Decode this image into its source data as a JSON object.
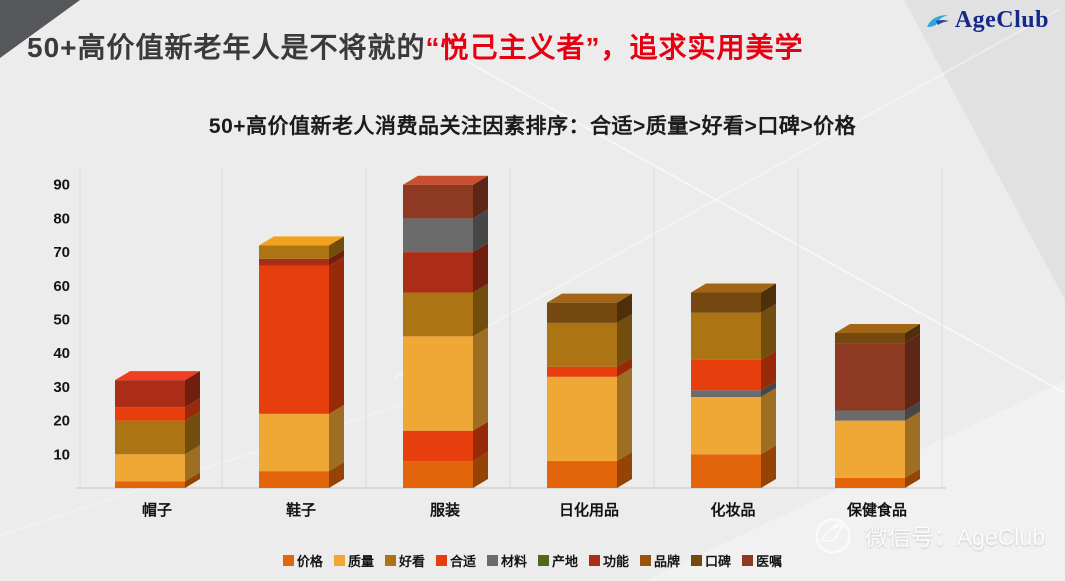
{
  "logo": {
    "text": "AgeClub"
  },
  "header": {
    "title_part_dark": "50+高价值新老年人是不将就的",
    "title_part_red": "“悦己主义者”，追求实用美学",
    "subtitle": "50+高价值新老人消费品关注因素排序：合适>质量>好看>口碑>价格"
  },
  "watermark": {
    "text": "微信号：AgeClub"
  },
  "colors": {
    "background": "#ECECEC",
    "accent_red": "#E60012",
    "title_dark": "#3A3A3C",
    "logo_blue": "#15298A"
  },
  "chart_data": {
    "type": "bar",
    "stacked": true,
    "title": "50+高价值新老人消费品关注因素排序：合适>质量>好看>口碑>价格",
    "categories": [
      "帽子",
      "鞋子",
      "服装",
      "日化用品",
      "化妆品",
      "保健食品"
    ],
    "ylim": [
      0,
      90
    ],
    "yticks": [
      10,
      20,
      30,
      40,
      50,
      60,
      70,
      80,
      90
    ],
    "grid": "vertical-only",
    "legend_position": "bottom",
    "legend": [
      {
        "label": "价格",
        "color": "#E3650B"
      },
      {
        "label": "质量",
        "color": "#EFA735"
      },
      {
        "label": "好看",
        "color": "#AD7414"
      },
      {
        "label": "合适",
        "color": "#E73E0D"
      },
      {
        "label": "材料",
        "color": "#6B6B6B"
      },
      {
        "label": "产地",
        "color": "#51691E"
      },
      {
        "label": "功能",
        "color": "#AB2D17"
      },
      {
        "label": "品牌",
        "color": "#97540C"
      },
      {
        "label": "口碑",
        "color": "#74480F"
      },
      {
        "label": "医嘱",
        "color": "#8E3A22"
      }
    ],
    "bars": [
      {
        "category": "帽子",
        "total": 32,
        "segments": [
          [
            "价格",
            2
          ],
          [
            "质量",
            8
          ],
          [
            "好看",
            10
          ],
          [
            "合适",
            4
          ],
          [
            "功能",
            8
          ]
        ]
      },
      {
        "category": "鞋子",
        "total": 72,
        "segments": [
          [
            "价格",
            5
          ],
          [
            "质量",
            17
          ],
          [
            "合适",
            44
          ],
          [
            "功能",
            2
          ],
          [
            "好看",
            4
          ]
        ]
      },
      {
        "category": "服装",
        "total": 90,
        "segments": [
          [
            "价格",
            8
          ],
          [
            "合适",
            9
          ],
          [
            "质量",
            28
          ],
          [
            "好看",
            13
          ],
          [
            "功能",
            12
          ],
          [
            "材料",
            10
          ],
          [
            "医嘱",
            10
          ]
        ]
      },
      {
        "category": "日化用品",
        "total": 55,
        "segments": [
          [
            "价格",
            8
          ],
          [
            "质量",
            25
          ],
          [
            "合适",
            3
          ],
          [
            "好看",
            13
          ],
          [
            "口碑",
            6
          ]
        ]
      },
      {
        "category": "化妆品",
        "total": 58,
        "segments": [
          [
            "价格",
            10
          ],
          [
            "质量",
            17
          ],
          [
            "材料",
            2
          ],
          [
            "合适",
            9
          ],
          [
            "好看",
            14
          ],
          [
            "口碑",
            6
          ]
        ]
      },
      {
        "category": "保健食品",
        "total": 46,
        "segments": [
          [
            "价格",
            3
          ],
          [
            "质量",
            17
          ],
          [
            "材料",
            3
          ],
          [
            "医嘱",
            20
          ],
          [
            "口碑",
            3
          ]
        ]
      }
    ]
  }
}
